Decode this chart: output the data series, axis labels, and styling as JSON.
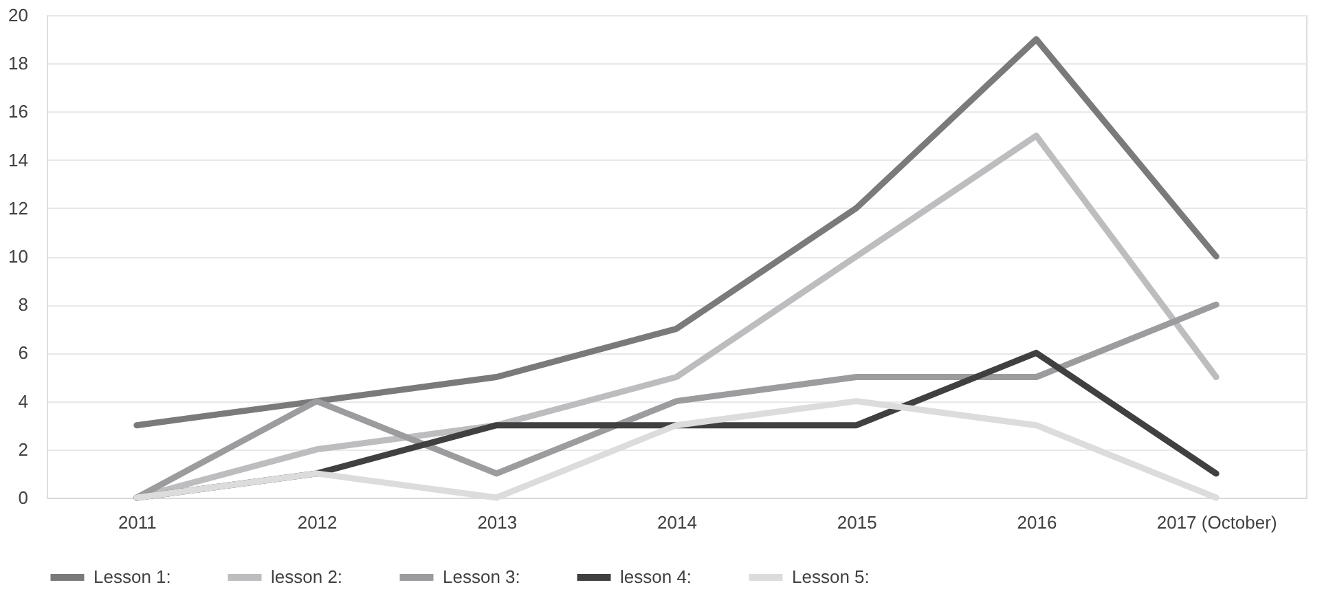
{
  "chart_data": {
    "type": "line",
    "categories": [
      "2011",
      "2012",
      "2013",
      "2014",
      "2015",
      "2016",
      "2017 (October)"
    ],
    "series": [
      {
        "name": "Lesson 1:",
        "color": "#7a7a7a",
        "values": [
          3,
          4,
          5,
          7,
          12,
          19,
          10
        ]
      },
      {
        "name": "lesson 2:",
        "color": "#bdbdbf",
        "values": [
          0,
          2,
          3,
          5,
          10,
          15,
          5
        ]
      },
      {
        "name": "Lesson 3:",
        "color": "#9c9c9e",
        "values": [
          0,
          4,
          1,
          4,
          5,
          5,
          8
        ]
      },
      {
        "name": "lesson 4:",
        "color": "#404040",
        "values": [
          0,
          1,
          3,
          3,
          3,
          6,
          1
        ]
      },
      {
        "name": "Lesson 5:",
        "color": "#dcdcdc",
        "values": [
          0,
          1,
          0,
          3,
          4,
          3,
          0
        ]
      }
    ],
    "ylim": [
      0,
      20
    ],
    "yticks": [
      0,
      2,
      4,
      6,
      8,
      10,
      12,
      14,
      16,
      18,
      20
    ],
    "grid": "y",
    "legend": "bottom",
    "marker": "none",
    "line_style": "solid"
  }
}
